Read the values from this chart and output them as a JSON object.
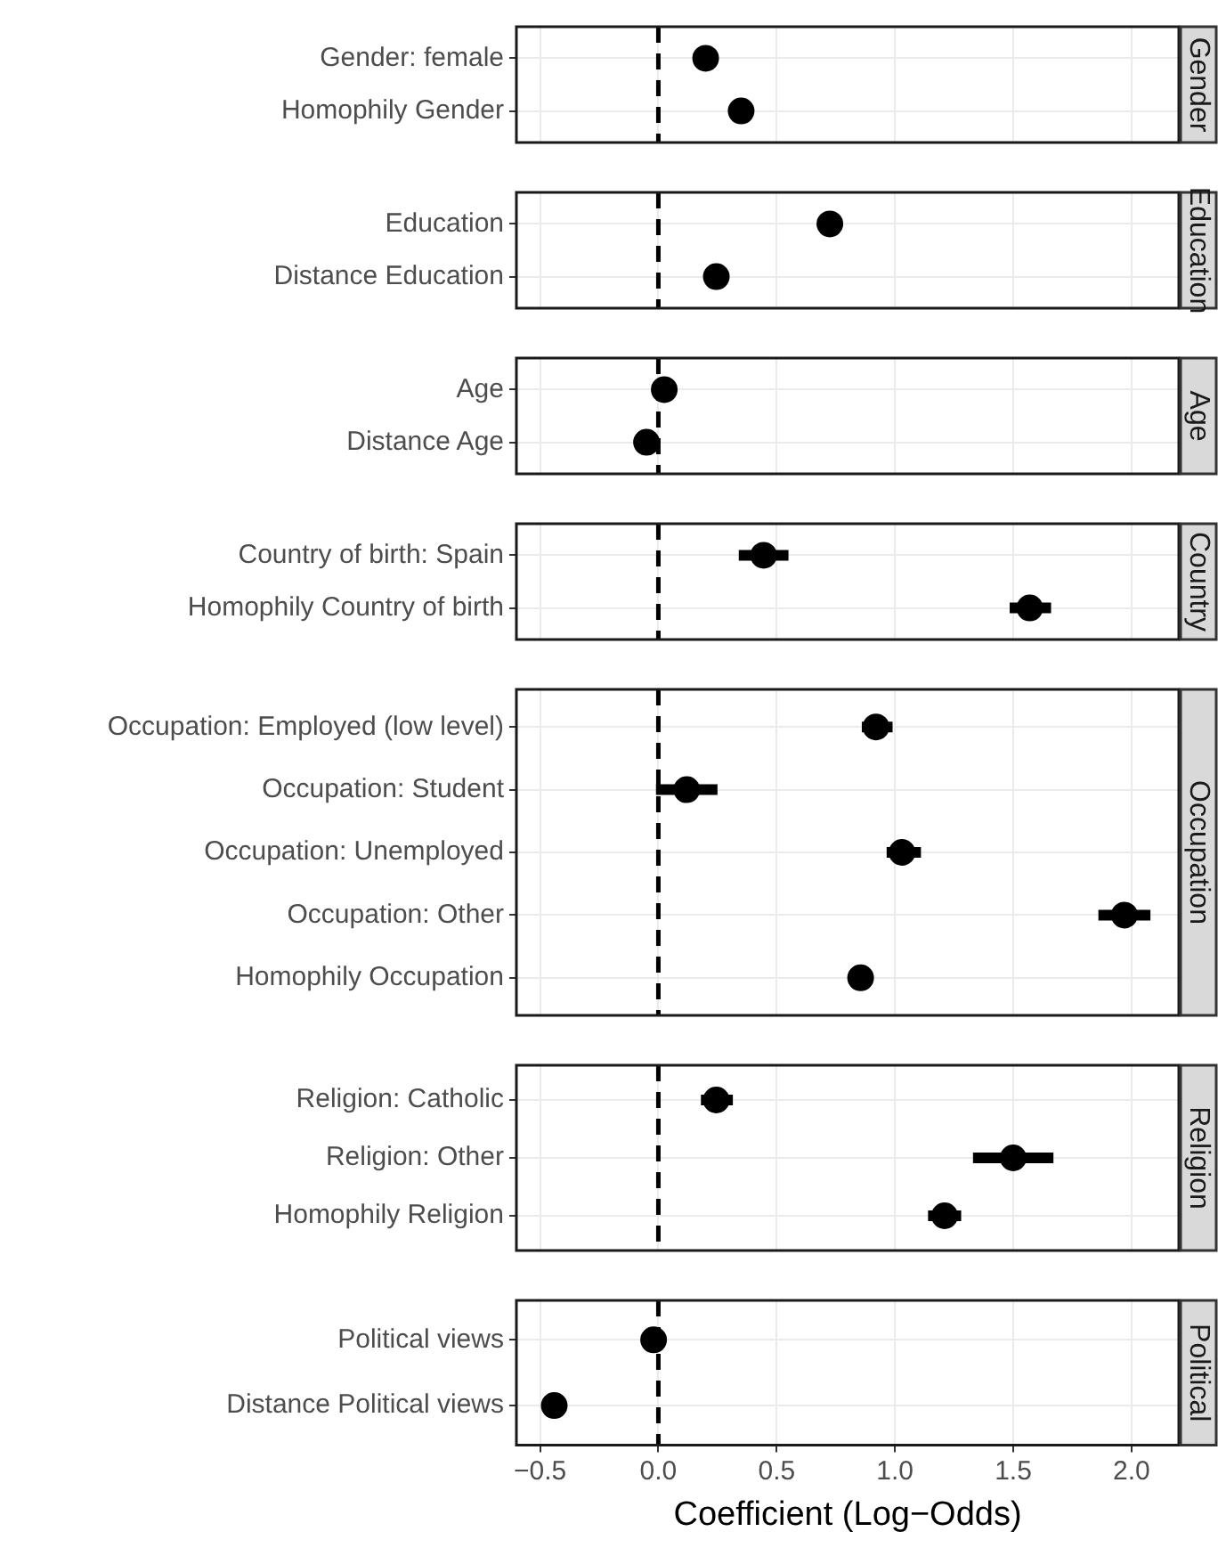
{
  "chart_data": [
    {
      "type": "scatter",
      "orientation": "horizontal",
      "title": "Gender",
      "categories": [
        "Gender: female",
        "Homophily Gender"
      ],
      "series": [
        {
          "color": "#000000",
          "values": [
            0.2,
            0.35
          ],
          "errors": [
            null,
            null
          ]
        }
      ],
      "xlim": [
        -0.6,
        2.2
      ],
      "xticks": [
        {
          "value": -0.5,
          "label": null
        },
        {
          "value": 0,
          "label": null
        },
        {
          "value": 0.5,
          "label": null
        },
        {
          "value": 1,
          "label": null
        },
        {
          "value": 1.5,
          "label": null
        },
        {
          "value": 2,
          "label": null
        }
      ],
      "ref_lines": [
        {
          "axis": "x",
          "value": 0,
          "line_style": "dashed"
        }
      ],
      "grid": true,
      "marker": "circle",
      "tick_labels": "y"
    },
    {
      "type": "scatter",
      "orientation": "horizontal",
      "title": "Education",
      "categories": [
        "Education",
        "Distance Education"
      ],
      "series": [
        {
          "color": "#000000",
          "values": [
            0.725,
            0.245
          ],
          "errors": [
            null,
            null
          ]
        }
      ],
      "xlim": [
        -0.6,
        2.2
      ],
      "xticks": [
        {
          "value": -0.5,
          "label": null
        },
        {
          "value": 0,
          "label": null
        },
        {
          "value": 0.5,
          "label": null
        },
        {
          "value": 1,
          "label": null
        },
        {
          "value": 1.5,
          "label": null
        },
        {
          "value": 2,
          "label": null
        }
      ],
      "ref_lines": [
        {
          "axis": "x",
          "value": 0,
          "line_style": "dashed"
        }
      ],
      "grid": true,
      "marker": "circle",
      "tick_labels": "y"
    },
    {
      "type": "scatter",
      "orientation": "horizontal",
      "title": "Age",
      "categories": [
        "Age",
        "Distance Age"
      ],
      "series": [
        {
          "color": "#000000",
          "values": [
            0.025,
            -0.05
          ],
          "errors": [
            null,
            null
          ]
        }
      ],
      "xlim": [
        -0.6,
        2.2
      ],
      "xticks": [
        {
          "value": -0.5,
          "label": null
        },
        {
          "value": 0,
          "label": null
        },
        {
          "value": 0.5,
          "label": null
        },
        {
          "value": 1,
          "label": null
        },
        {
          "value": 1.5,
          "label": null
        },
        {
          "value": 2,
          "label": null
        }
      ],
      "ref_lines": [
        {
          "axis": "x",
          "value": 0,
          "line_style": "dashed"
        }
      ],
      "grid": true,
      "marker": "circle",
      "tick_labels": "y"
    },
    {
      "type": "scatter",
      "orientation": "horizontal",
      "title": "Country",
      "categories": [
        "Country of birth: Spain",
        "Homophily Country of birth"
      ],
      "series": [
        {
          "color": "#000000",
          "values": [
            0.445,
            1.57
          ],
          "errors": [
            [
              0.34,
              0.55
            ],
            [
              1.485,
              1.66
            ]
          ]
        }
      ],
      "xlim": [
        -0.6,
        2.2
      ],
      "xticks": [
        {
          "value": -0.5,
          "label": null
        },
        {
          "value": 0,
          "label": null
        },
        {
          "value": 0.5,
          "label": null
        },
        {
          "value": 1,
          "label": null
        },
        {
          "value": 1.5,
          "label": null
        },
        {
          "value": 2,
          "label": null
        }
      ],
      "ref_lines": [
        {
          "axis": "x",
          "value": 0,
          "line_style": "dashed"
        }
      ],
      "grid": true,
      "marker": "circle",
      "tick_labels": "y"
    },
    {
      "type": "scatter",
      "orientation": "horizontal",
      "title": "Occupation",
      "categories": [
        "Occupation: Employed (low level)",
        "Occupation: Student",
        "Occupation: Unemployed",
        "Occupation: Other",
        "Homophily Occupation"
      ],
      "series": [
        {
          "color": "#000000",
          "values": [
            0.92,
            0.12,
            1.03,
            1.97,
            0.855
          ],
          "errors": [
            [
              0.86,
              0.99
            ],
            [
              -0.01,
              0.25
            ],
            [
              0.965,
              1.11
            ],
            [
              1.86,
              2.08
            ],
            null
          ]
        }
      ],
      "xlim": [
        -0.6,
        2.2
      ],
      "xticks": [
        {
          "value": -0.5,
          "label": null
        },
        {
          "value": 0,
          "label": null
        },
        {
          "value": 0.5,
          "label": null
        },
        {
          "value": 1,
          "label": null
        },
        {
          "value": 1.5,
          "label": null
        },
        {
          "value": 2,
          "label": null
        }
      ],
      "ref_lines": [
        {
          "axis": "x",
          "value": 0,
          "line_style": "dashed"
        }
      ],
      "grid": true,
      "marker": "circle",
      "tick_labels": "y"
    },
    {
      "type": "scatter",
      "orientation": "horizontal",
      "title": "Religion",
      "categories": [
        "Religion: Catholic",
        "Religion: Other",
        "Homophily Religion"
      ],
      "series": [
        {
          "color": "#000000",
          "values": [
            0.245,
            1.5,
            1.21
          ],
          "errors": [
            [
              0.18,
              0.315
            ],
            [
              1.33,
              1.67
            ],
            [
              1.14,
              1.28
            ]
          ]
        }
      ],
      "xlim": [
        -0.6,
        2.2
      ],
      "xticks": [
        {
          "value": -0.5,
          "label": null
        },
        {
          "value": 0,
          "label": null
        },
        {
          "value": 0.5,
          "label": null
        },
        {
          "value": 1,
          "label": null
        },
        {
          "value": 1.5,
          "label": null
        },
        {
          "value": 2,
          "label": null
        }
      ],
      "ref_lines": [
        {
          "axis": "x",
          "value": 0,
          "line_style": "dashed"
        }
      ],
      "grid": true,
      "marker": "circle",
      "tick_labels": "y"
    },
    {
      "type": "scatter",
      "orientation": "horizontal",
      "title": "Political",
      "xlabel": "Coefficient (Log−Odds)",
      "categories": [
        "Political views",
        "Distance Political views"
      ],
      "series": [
        {
          "color": "#000000",
          "values": [
            -0.02,
            -0.44
          ],
          "errors": [
            null,
            null
          ]
        }
      ],
      "xlim": [
        -0.6,
        2.2
      ],
      "xticks": [
        {
          "value": -0.5,
          "label": "−0.5"
        },
        {
          "value": 0,
          "label": "0.0"
        },
        {
          "value": 0.5,
          "label": "0.5"
        },
        {
          "value": 1,
          "label": "1.0"
        },
        {
          "value": 1.5,
          "label": "1.5"
        },
        {
          "value": 2,
          "label": "2.0"
        }
      ],
      "ref_lines": [
        {
          "axis": "x",
          "value": 0,
          "line_style": "dashed"
        }
      ],
      "grid": true,
      "marker": "circle"
    }
  ]
}
